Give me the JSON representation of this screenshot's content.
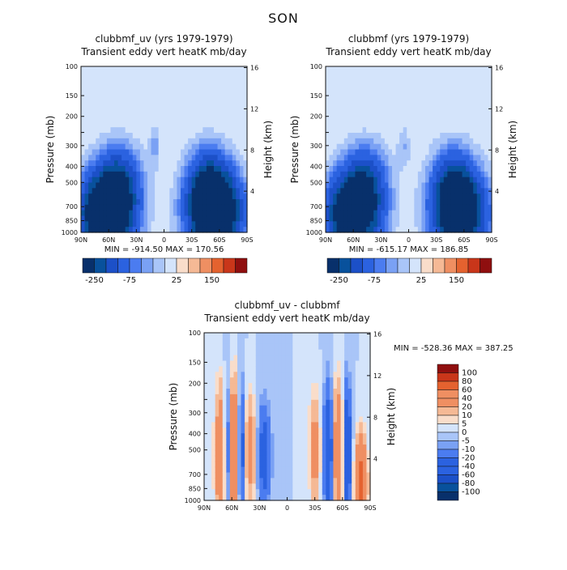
{
  "figure_title": "SON",
  "colors": {
    "div": [
      "#08306b",
      "#08519c",
      "#1c50c8",
      "#2b62e0",
      "#4b7cf0",
      "#7aa1f4",
      "#a9c5f8",
      "#d4e4fb",
      "#f9ddca",
      "#f5b995",
      "#ef8f62",
      "#e4622f",
      "#c9361a",
      "#8f0f0f"
    ]
  },
  "chart_data": [
    {
      "type": "heatmap",
      "title": "clubbmf_uv (yrs 1979-1979)",
      "subtitle": "Transient eddy vert heatK mb/day",
      "xlabel": "",
      "ylabel": "Pressure (mb)",
      "ylabel_right": "Height (km)",
      "x_ticks": [
        "90N",
        "60N",
        "30N",
        "0",
        "30S",
        "60S",
        "90S"
      ],
      "y_ticks": [
        "100",
        "150",
        "200",
        "250",
        "300",
        "400",
        "500",
        "700",
        "850",
        "1000"
      ],
      "y_tick_labels": [
        "100",
        "150",
        "200",
        "",
        "300",
        "400",
        "500",
        "700",
        "850",
        "1000"
      ],
      "y_right_ticks": [
        "16",
        "12",
        "8",
        "4"
      ],
      "y_log_scale": true,
      "ylim": [
        1000,
        100
      ],
      "xlim": [
        90,
        -90
      ],
      "min_label": "MIN = -914.50",
      "max_label": "MAX = 170.56",
      "colorbar_labels": [
        "-250",
        "-75",
        "25",
        "150"
      ],
      "features": [
        {
          "lat": 60,
          "p": 760,
          "peak": -400,
          "w": 20,
          "h": 0.4
        },
        {
          "lat": 48,
          "p": 480,
          "peak": -150,
          "w": 16,
          "h": 0.35
        },
        {
          "lat": -55,
          "p": 760,
          "peak": -450,
          "w": 20,
          "h": 0.38
        },
        {
          "lat": -48,
          "p": 480,
          "peak": -150,
          "w": 16,
          "h": 0.35
        },
        {
          "lat": 10,
          "p": 300,
          "peak": -60,
          "w": 4,
          "h": 0.2
        },
        {
          "lat": 80,
          "p": 800,
          "peak": -80,
          "w": 8,
          "h": 0.3
        }
      ]
    },
    {
      "type": "heatmap",
      "title": "clubbmf (yrs 1979-1979)",
      "subtitle": "Transient eddy vert heatK mb/day",
      "xlabel": "",
      "ylabel": "Pressure (mb)",
      "ylabel_right": "Height (km)",
      "x_ticks": [
        "90N",
        "60N",
        "30N",
        "0",
        "30S",
        "60S",
        "90S"
      ],
      "y_ticks": [
        "100",
        "150",
        "200",
        "250",
        "300",
        "400",
        "500",
        "700",
        "850",
        "1000"
      ],
      "y_tick_labels": [
        "100",
        "150",
        "200",
        "",
        "300",
        "400",
        "500",
        "700",
        "850",
        "1000"
      ],
      "y_right_ticks": [
        "16",
        "12",
        "8",
        "4"
      ],
      "y_log_scale": true,
      "ylim": [
        1000,
        100
      ],
      "xlim": [
        90,
        -90
      ],
      "min_label": "MIN = -615.17",
      "max_label": "MAX = 186.85",
      "colorbar_labels": [
        "-250",
        "-75",
        "25",
        "150"
      ],
      "features": [
        {
          "lat": 58,
          "p": 760,
          "peak": -350,
          "w": 20,
          "h": 0.4
        },
        {
          "lat": 46,
          "p": 480,
          "peak": -140,
          "w": 16,
          "h": 0.35
        },
        {
          "lat": -55,
          "p": 760,
          "peak": -400,
          "w": 20,
          "h": 0.38
        },
        {
          "lat": -48,
          "p": 480,
          "peak": -140,
          "w": 16,
          "h": 0.35
        },
        {
          "lat": 5,
          "p": 300,
          "peak": -50,
          "w": 5,
          "h": 0.2
        },
        {
          "lat": 80,
          "p": 800,
          "peak": -70,
          "w": 8,
          "h": 0.3
        }
      ]
    },
    {
      "type": "heatmap",
      "title": "clubbmf_uv - clubbmf",
      "subtitle": "Transient eddy vert heatK mb/day",
      "xlabel": "",
      "ylabel": "Pressure (mb)",
      "ylabel_right": "Height (km)",
      "x_ticks": [
        "90N",
        "60N",
        "30N",
        "0",
        "30S",
        "60S",
        "90S"
      ],
      "y_ticks": [
        "100",
        "150",
        "200",
        "250",
        "300",
        "400",
        "500",
        "700",
        "850",
        "1000"
      ],
      "y_tick_labels": [
        "100",
        "150",
        "200",
        "",
        "300",
        "400",
        "500",
        "700",
        "850",
        "1000"
      ],
      "y_right_ticks": [
        "16",
        "12",
        "8",
        "4"
      ],
      "y_log_scale": true,
      "ylim": [
        1000,
        100
      ],
      "xlim": [
        90,
        -90
      ],
      "min_label": "MIN = -528.36",
      "max_label": "MAX = 387.25",
      "colorbar_labels": [
        "100",
        "80",
        "60",
        "40",
        "20",
        "10",
        "5",
        "0",
        "-5",
        "-10",
        "-20",
        "-40",
        "-60",
        "-80",
        "-100"
      ],
      "features": [
        {
          "lat": 72,
          "p": 550,
          "peak": 50,
          "w": 4,
          "h": 0.6
        },
        {
          "lat": 58,
          "p": 500,
          "peak": 60,
          "w": 4,
          "h": 0.6
        },
        {
          "lat": 65,
          "p": 500,
          "peak": -40,
          "w": 3,
          "h": 0.6
        },
        {
          "lat": 50,
          "p": 500,
          "peak": -35,
          "w": 3,
          "h": 0.6
        },
        {
          "lat": 40,
          "p": 500,
          "peak": 30,
          "w": 4,
          "h": 0.5
        },
        {
          "lat": 25,
          "p": 550,
          "peak": -30,
          "w": 5,
          "h": 0.5
        },
        {
          "lat": -30,
          "p": 500,
          "peak": 30,
          "w": 4,
          "h": 0.5
        },
        {
          "lat": -45,
          "p": 500,
          "peak": -40,
          "w": 4,
          "h": 0.6
        },
        {
          "lat": -55,
          "p": 500,
          "peak": 45,
          "w": 4,
          "h": 0.6
        },
        {
          "lat": -65,
          "p": 500,
          "peak": -45,
          "w": 3,
          "h": 0.6
        },
        {
          "lat": -80,
          "p": 800,
          "peak": 80,
          "w": 4,
          "h": 0.4
        }
      ]
    }
  ]
}
